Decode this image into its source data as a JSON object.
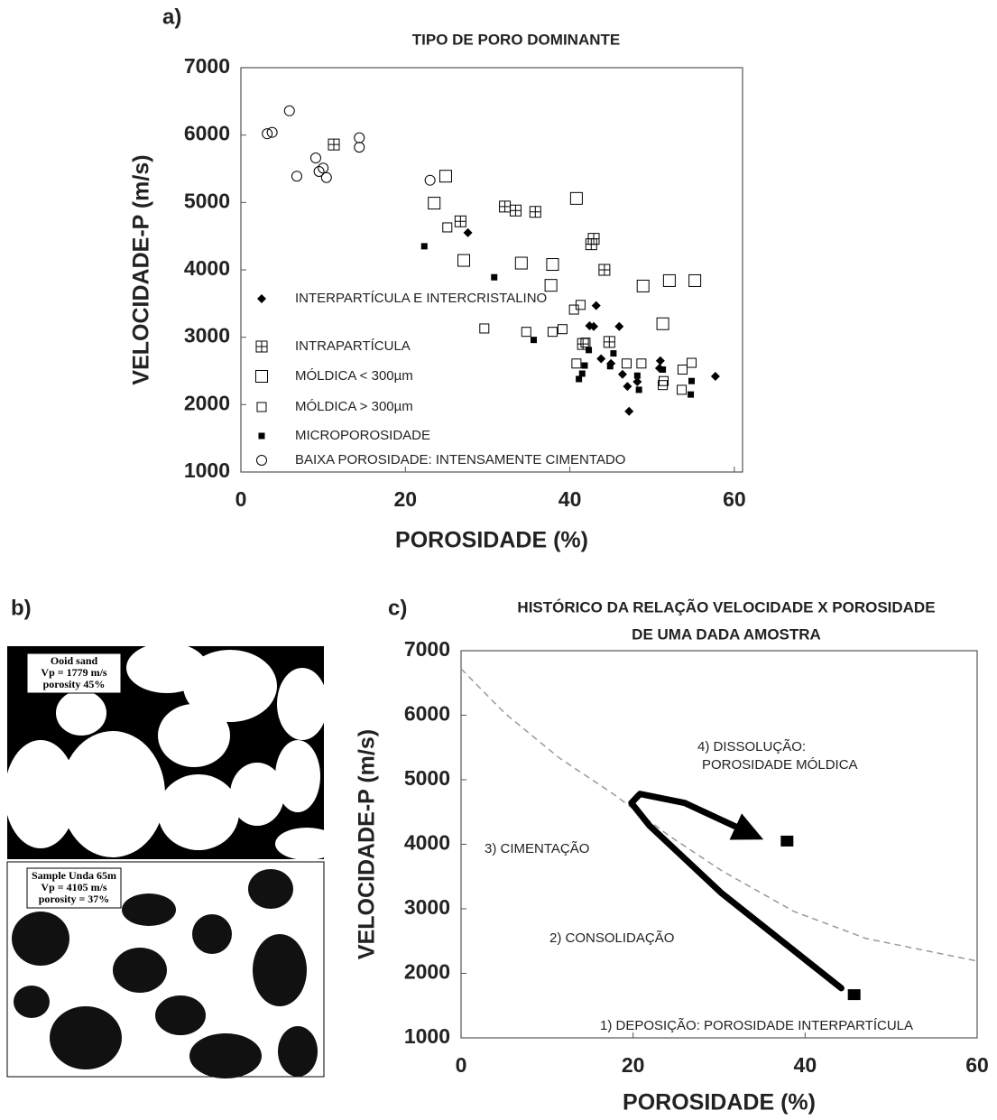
{
  "chart_data": [
    {
      "type": "scatter",
      "panel_label": "a)",
      "title": "TIPO DE PORO DOMINANTE",
      "xlabel": "POROSIDADE (%)",
      "ylabel": "VELOCIDADE-P (m/s)",
      "xlim": [
        0,
        61
      ],
      "ylim": [
        1000,
        7000
      ],
      "xticks": [
        0,
        20,
        40,
        60
      ],
      "yticks": [
        1000,
        2000,
        3000,
        4000,
        5000,
        6000,
        7000
      ],
      "series": [
        {
          "name": "INTERPARTÍCULA E INTERCRISTALINO",
          "marker": "diamond",
          "color": "#000000",
          "x": [
            27.6,
            43.2,
            42.4,
            42.9,
            46.0,
            43.8,
            45.0,
            46.4,
            47.0,
            47.2,
            51.0,
            50.9,
            57.7,
            48.2
          ],
          "values": [
            4550,
            3470,
            3170,
            3160,
            3160,
            2680,
            2610,
            2450,
            2270,
            1900,
            2650,
            2540,
            2420,
            2340
          ]
        },
        {
          "name": "INTRAPARTÍCULA",
          "marker": "grid-square",
          "color": "#000000",
          "x": [
            11.3,
            26.7,
            32.1,
            33.4,
            35.8,
            42.9,
            42.6,
            44.2,
            41.6,
            44.8
          ],
          "values": [
            5860,
            4720,
            4940,
            4880,
            4860,
            4460,
            4380,
            4000,
            2900,
            2930
          ]
        },
        {
          "name": "MÓLDICA < 300µm",
          "marker": "square-large",
          "color": "#000000",
          "x": [
            23.5,
            24.9,
            27.1,
            34.1,
            37.9,
            40.8,
            48.9,
            52.1,
            55.2,
            51.3,
            37.7
          ],
          "values": [
            4990,
            5390,
            4140,
            4100,
            4080,
            5060,
            3760,
            3840,
            3840,
            3200,
            3770
          ]
        },
        {
          "name": "MÓLDICA > 300µm",
          "marker": "square-small",
          "color": "#000000",
          "x": [
            25.1,
            29.6,
            34.7,
            37.9,
            39.1,
            40.5,
            41.3,
            41.9,
            40.8,
            46.9,
            48.7,
            51.4,
            53.7,
            54.8,
            53.6,
            51.3
          ],
          "values": [
            4630,
            3130,
            3080,
            3080,
            3120,
            3410,
            3480,
            2920,
            2610,
            2610,
            2610,
            2350,
            2520,
            2620,
            2220,
            2290
          ]
        },
        {
          "name": "MICROPOROSIDADE",
          "marker": "square-filled",
          "color": "#000000",
          "x": [
            22.3,
            30.8,
            35.6,
            41.5,
            41.8,
            44.9,
            41.1,
            48.2,
            48.4,
            51.3,
            54.8,
            54.7,
            42.3,
            45.3
          ],
          "values": [
            4350,
            3890,
            2960,
            2460,
            2580,
            2570,
            2380,
            2430,
            2220,
            2520,
            2350,
            2150,
            2810,
            2760
          ]
        },
        {
          "name": "BAIXA POROSIDADE: INTENSAMENTE CIMENTADO",
          "marker": "circle",
          "color": "#000000",
          "x": [
            3.2,
            3.8,
            5.9,
            6.8,
            9.1,
            9.5,
            10.0,
            10.4,
            14.4,
            14.4,
            23.0
          ],
          "values": [
            6020,
            6040,
            6360,
            5390,
            5660,
            5460,
            5510,
            5370,
            5960,
            5820,
            5330
          ]
        }
      ]
    },
    {
      "type": "line",
      "panel_label": "c)",
      "title_lines": [
        "HISTÓRICO DA RELAÇÃO VELOCIDADE X POROSIDADE",
        "DE UMA DADA AMOSTRA"
      ],
      "xlabel": "POROSIDADE (%)",
      "ylabel": "VELOCIDADE-P (m/s)",
      "xlim": [
        0,
        60
      ],
      "ylim": [
        1000,
        7000
      ],
      "xticks": [
        0,
        20,
        40,
        60
      ],
      "yticks": [
        1000,
        2000,
        3000,
        4000,
        5000,
        6000,
        7000
      ],
      "series": [
        {
          "style": "dashed",
          "color": "#999999",
          "x": [
            0,
            5.1,
            11.4,
            17.7,
            24.0,
            30.3,
            38.7,
            47.1,
            60
          ],
          "values": [
            6720,
            6030,
            5340,
            4780,
            4150,
            3590,
            2960,
            2540,
            2190
          ]
        },
        {
          "style": "arrow",
          "color": "#000000",
          "x": [
            44.2,
            30.3,
            21.9,
            19.8,
            20.8,
            26.0,
            32.3
          ],
          "values": [
            1770,
            3240,
            4290,
            4640,
            4780,
            4640,
            4250
          ]
        },
        {
          "style": "squares",
          "color": "#000000",
          "x": [
            45.7,
            37.9
          ],
          "values": [
            1670,
            4050
          ]
        }
      ],
      "annotations": [
        "4) DISSOLUÇÃO:",
        "POROSIDADE MÓLDICA",
        "3) CIMENTAÇÃO",
        "2) CONSOLIDAÇÃO",
        "1) DEPOSIÇÃO: POROSIDADE INTERPARTÍCULA"
      ]
    }
  ],
  "panel_b": {
    "panel_label": "b)",
    "top": [
      "Ooid sand",
      "Vp = 1779 m/s",
      "porosity 45%"
    ],
    "bottom": [
      "Sample Unda 65m",
      "Vp = 4105 m/s",
      "porosity = 37%"
    ]
  }
}
